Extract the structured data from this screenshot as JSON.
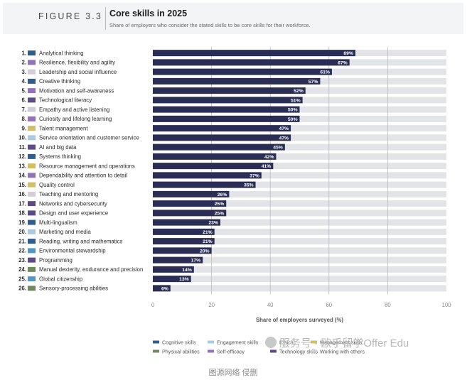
{
  "figure_label": "FIGURE 3.3",
  "title": "Core skills in 2025",
  "subtitle": "Share of employers who consider the stated skills to be core skills for their workforce.",
  "caption": "图源网络 侵删",
  "watermark": "服务号 · 欧乎留学Offer Edu",
  "colors": {
    "bar": "#2a2e55",
    "track": "#e2e4e7",
    "grid": "#b9bcc4",
    "cognitive": "#2a5f8f",
    "engagement": "#a7cbe3",
    "ethics": "#4e9ac6",
    "management": "#d3bf5c",
    "physical": "#6f8b5e",
    "self_efficacy": "#9273b8",
    "technology": "#5e4a86",
    "working_with_others": "#d3cdd7"
  },
  "chart_data": {
    "type": "bar",
    "orientation": "horizontal",
    "title": "Core skills in 2025",
    "xlabel": "Share of employers surveyed (%)",
    "xlim": [
      0,
      100
    ],
    "xticks": [
      0,
      20,
      40,
      60,
      80,
      100
    ],
    "categories": [
      {
        "rank": "1.",
        "label": "Analytical thinking",
        "value": 69,
        "value_label": "69%",
        "group": "cognitive"
      },
      {
        "rank": "2.",
        "label": "Resilience, flexibility and agility",
        "value": 67,
        "value_label": "67%",
        "group": "self_efficacy"
      },
      {
        "rank": "3.",
        "label": "Leadership and social influence",
        "value": 61,
        "value_label": "61%",
        "group": "working_with_others"
      },
      {
        "rank": "4.",
        "label": "Creative thinking",
        "value": 57,
        "value_label": "57%",
        "group": "cognitive"
      },
      {
        "rank": "5.",
        "label": "Motivation and self-awareness",
        "value": 52,
        "value_label": "52%",
        "group": "self_efficacy"
      },
      {
        "rank": "6.",
        "label": "Technological literacy",
        "value": 51,
        "value_label": "51%",
        "group": "technology"
      },
      {
        "rank": "7.",
        "label": "Empathy and active listening",
        "value": 50,
        "value_label": "50%",
        "group": "working_with_others"
      },
      {
        "rank": "8.",
        "label": "Curiosity and lifelong learning",
        "value": 50,
        "value_label": "50%",
        "group": "self_efficacy"
      },
      {
        "rank": "9.",
        "label": "Talent management",
        "value": 47,
        "value_label": "47%",
        "group": "management"
      },
      {
        "rank": "10.",
        "label": "Service orientation and customer service",
        "value": 47,
        "value_label": "47%",
        "group": "engagement"
      },
      {
        "rank": "11.",
        "label": "AI and big data",
        "value": 45,
        "value_label": "45%",
        "group": "technology"
      },
      {
        "rank": "12.",
        "label": "Systems thinking",
        "value": 42,
        "value_label": "42%",
        "group": "cognitive"
      },
      {
        "rank": "13.",
        "label": "Resource management and operations",
        "value": 41,
        "value_label": "41%",
        "group": "management"
      },
      {
        "rank": "14.",
        "label": "Dependability and attention to detail",
        "value": 37,
        "value_label": "37%",
        "group": "self_efficacy"
      },
      {
        "rank": "15.",
        "label": "Quality control",
        "value": 35,
        "value_label": "35%",
        "group": "management"
      },
      {
        "rank": "16.",
        "label": "Teaching and mentoring",
        "value": 26,
        "value_label": "26%",
        "group": "working_with_others"
      },
      {
        "rank": "17.",
        "label": "Networks and cybersecurity",
        "value": 25,
        "value_label": "25%",
        "group": "technology"
      },
      {
        "rank": "18.",
        "label": "Design and user experience",
        "value": 25,
        "value_label": "25%",
        "group": "technology"
      },
      {
        "rank": "19.",
        "label": "Multi-lingualism",
        "value": 23,
        "value_label": "23%",
        "group": "cognitive"
      },
      {
        "rank": "20.",
        "label": "Marketing and media",
        "value": 21,
        "value_label": "21%",
        "group": "engagement"
      },
      {
        "rank": "21.",
        "label": "Reading, writing and mathematics",
        "value": 21,
        "value_label": "21%",
        "group": "cognitive"
      },
      {
        "rank": "22.",
        "label": "Environmental stewardship",
        "value": 20,
        "value_label": "20%",
        "group": "ethics"
      },
      {
        "rank": "23.",
        "label": "Programming",
        "value": 17,
        "value_label": "17%",
        "group": "technology"
      },
      {
        "rank": "24.",
        "label": "Manual dexterity, endurance and precision",
        "value": 14,
        "value_label": "14%",
        "group": "physical"
      },
      {
        "rank": "25.",
        "label": "Global citizenship",
        "value": 13,
        "value_label": "13%",
        "group": "ethics"
      },
      {
        "rank": "26.",
        "label": "Sensory-processing abilities",
        "value": 6,
        "value_label": "6%",
        "group": "physical"
      }
    ],
    "legend": [
      {
        "key": "cognitive",
        "label": "Cognitive skills"
      },
      {
        "key": "engagement",
        "label": "Engagement skills"
      },
      {
        "key": "ethics",
        "label": "Ethics"
      },
      {
        "key": "management",
        "label": "Management skills"
      },
      {
        "key": "physical",
        "label": "Physical abilities"
      },
      {
        "key": "self_efficacy",
        "label": "Self-efficacy"
      },
      {
        "key": "technology",
        "label": "Technology skills"
      },
      {
        "key": "working_with_others",
        "label": "Working with others"
      }
    ]
  }
}
